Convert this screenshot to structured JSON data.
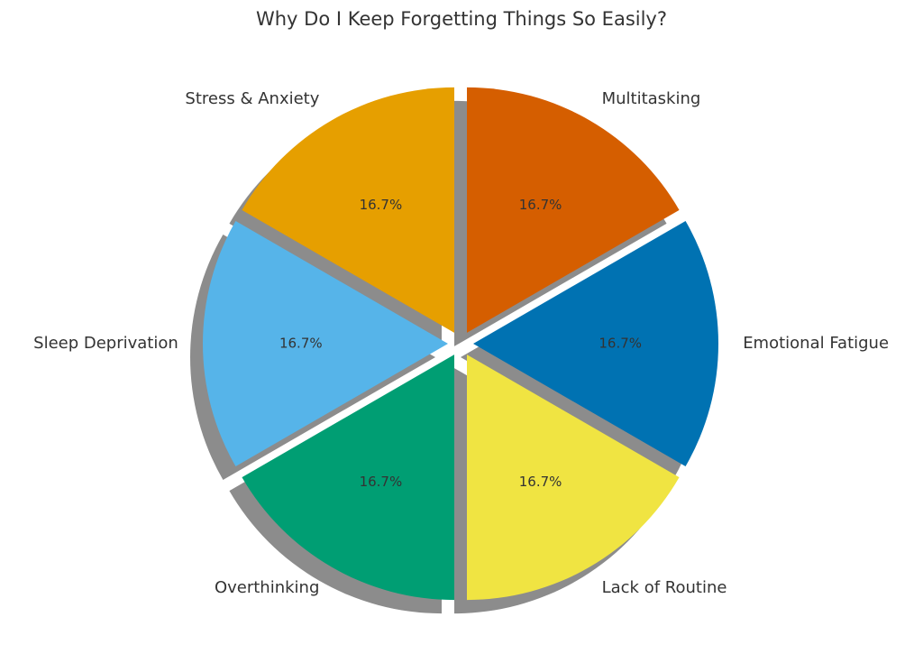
{
  "chart_data": {
    "type": "pie",
    "title": "Why Do I Keep Forgetting Things So Easily?",
    "categories": [
      "Multitasking",
      "Emotional Fatigue",
      "Lack of Routine",
      "Overthinking",
      "Sleep Deprivation",
      "Stress & Anxiety"
    ],
    "values": [
      16.7,
      16.7,
      16.7,
      16.7,
      16.7,
      16.7
    ],
    "value_labels": [
      "16.7%",
      "16.7%",
      "16.7%",
      "16.7%",
      "16.7%",
      "16.7%"
    ],
    "colors": [
      "#D55E00",
      "#0072B2",
      "#F0E442",
      "#009E73",
      "#56B4E9",
      "#E69F00"
    ]
  }
}
